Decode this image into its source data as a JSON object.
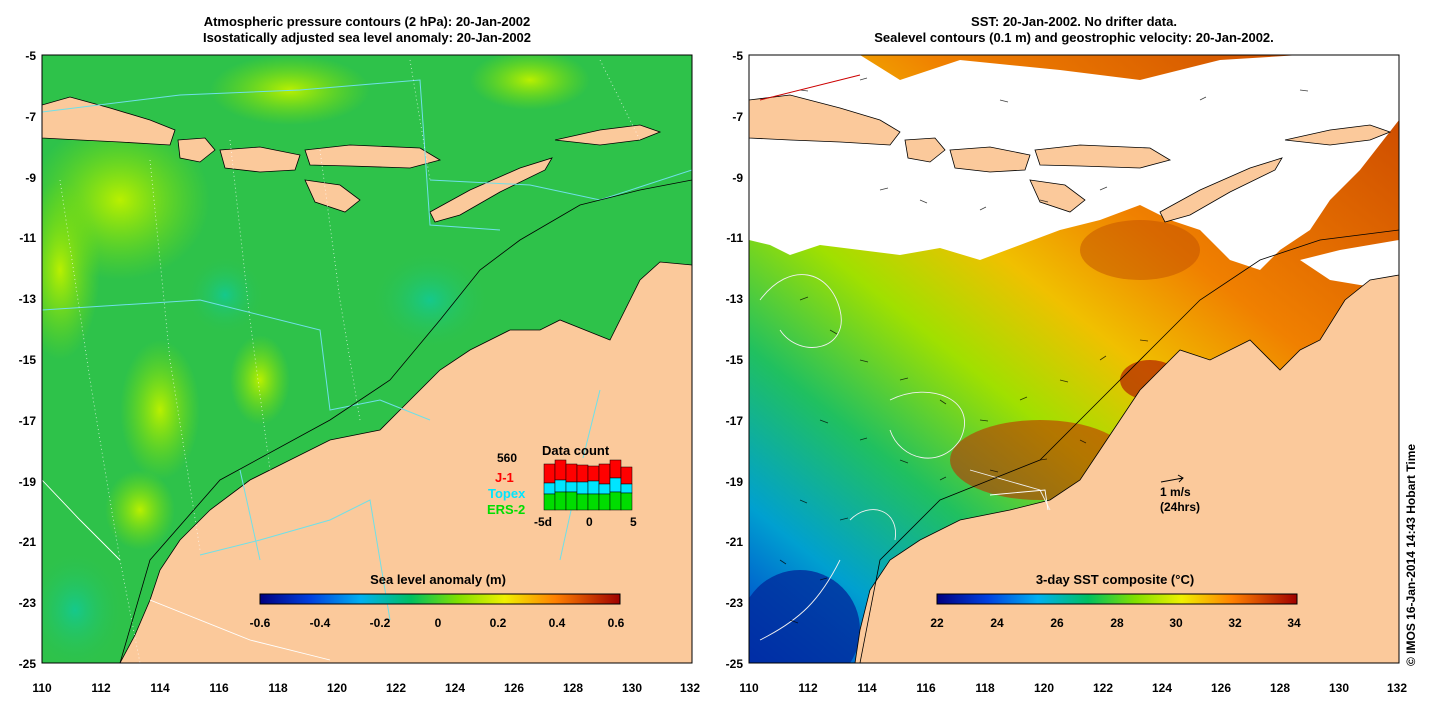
{
  "left_panel": {
    "title_line1": "Atmospheric pressure contours (2 hPa): 20-Jan-2002",
    "title_line2": "Isostatically adjusted sea level anomaly: 20-Jan-2002",
    "colorbar": {
      "label": "Sea level anomaly (m)",
      "ticks": [
        "-0.6",
        "-0.4",
        "-0.2",
        "0",
        "0.2",
        "0.4",
        "0.6"
      ],
      "range": [
        -0.6,
        0.6
      ]
    },
    "data_count": {
      "title": "Data count",
      "max_label": "560",
      "series": [
        {
          "name": "J-1",
          "color": "#ff0000"
        },
        {
          "name": "Topex",
          "color": "#00e5ff"
        },
        {
          "name": "ERS-2",
          "color": "#00dd00"
        }
      ],
      "axis_ticks": [
        "-5d",
        "0",
        "5"
      ]
    }
  },
  "right_panel": {
    "title_line1": "SST: 20-Jan-2002. No drifter data.",
    "title_line2": "Sealevel contours (0.1 m) and geostrophic velocity: 20-Jan-2002.",
    "colorbar": {
      "label": "3-day SST composite (°C)",
      "ticks": [
        "22",
        "24",
        "26",
        "28",
        "30",
        "32",
        "34"
      ],
      "range": [
        22,
        34
      ]
    },
    "velocity_key": {
      "line1": "1 m/s",
      "line2": "(24hrs)"
    }
  },
  "axes": {
    "lon_ticks": [
      "110",
      "112",
      "114",
      "116",
      "118",
      "120",
      "122",
      "124",
      "126",
      "128",
      "130",
      "132"
    ],
    "lat_ticks": [
      "-5",
      "-7",
      "-9",
      "-11",
      "-13",
      "-15",
      "-17",
      "-19",
      "-21",
      "-23",
      "-25"
    ],
    "lon_range": [
      110,
      132
    ],
    "lat_range": [
      -25,
      -5
    ]
  },
  "credit": "© IMOS 16-Jan-2014 14:43 Hobart Time",
  "colors": {
    "land": "#fbc99b",
    "sea_base": "#2ec24a",
    "contour": "#6fe0e8"
  }
}
